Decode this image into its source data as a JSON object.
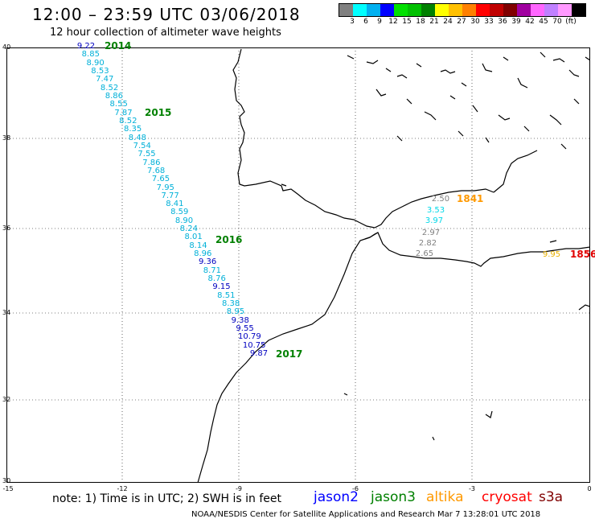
{
  "header": {
    "title": "12:00 – 23:59 UTC 03/06/2018",
    "subtitle": "12 hour collection of altimeter wave heights"
  },
  "colorbar": {
    "colors": [
      "#808080",
      "#00ffff",
      "#00b0f0",
      "#0000ff",
      "#00e000",
      "#00c000",
      "#008000",
      "#ffff00",
      "#ffc000",
      "#ff8000",
      "#ff0000",
      "#c00000",
      "#800000",
      "#a000a0",
      "#ff66ff",
      "#c080ff",
      "#ff99ff",
      "#000000"
    ],
    "labels": [
      "3",
      "6",
      "9",
      "12",
      "15",
      "18",
      "21",
      "24",
      "27",
      "30",
      "33",
      "36",
      "39",
      "42",
      "45",
      "70",
      "(ft)"
    ]
  },
  "axes": {
    "y_ticks": [
      "40",
      "38",
      "36",
      "34",
      "32",
      "30"
    ],
    "x_ticks": [
      "-15",
      "-12",
      "-9",
      "-6",
      "-3",
      "0"
    ]
  },
  "track_main": {
    "color_teal": "#00b0d8",
    "color_blue": "#0000c0",
    "values": [
      {
        "v": "9.22",
        "c": "blue"
      },
      {
        "v": "8.85",
        "c": "teal"
      },
      {
        "v": "8.90",
        "c": "teal"
      },
      {
        "v": "8.53",
        "c": "teal"
      },
      {
        "v": "7.47",
        "c": "teal"
      },
      {
        "v": "8.52",
        "c": "teal"
      },
      {
        "v": "8.86",
        "c": "teal"
      },
      {
        "v": "8.55",
        "c": "teal"
      },
      {
        "v": "7.87",
        "c": "teal"
      },
      {
        "v": "8.52",
        "c": "teal"
      },
      {
        "v": "8.35",
        "c": "teal"
      },
      {
        "v": "8.48",
        "c": "teal"
      },
      {
        "v": "7.54",
        "c": "teal"
      },
      {
        "v": "7.55",
        "c": "teal"
      },
      {
        "v": "7.86",
        "c": "teal"
      },
      {
        "v": "7.68",
        "c": "teal"
      },
      {
        "v": "7.65",
        "c": "teal"
      },
      {
        "v": "7.95",
        "c": "teal"
      },
      {
        "v": "7.77",
        "c": "teal"
      },
      {
        "v": "8.41",
        "c": "teal"
      },
      {
        "v": "8.59",
        "c": "teal"
      },
      {
        "v": "8.90",
        "c": "teal"
      },
      {
        "v": "8.24",
        "c": "teal"
      },
      {
        "v": "8.01",
        "c": "teal"
      },
      {
        "v": "8.14",
        "c": "teal"
      },
      {
        "v": "8.96",
        "c": "teal"
      },
      {
        "v": "9.36",
        "c": "blue"
      },
      {
        "v": "8.71",
        "c": "teal"
      },
      {
        "v": "8.76",
        "c": "teal"
      },
      {
        "v": "9.15",
        "c": "blue"
      },
      {
        "v": "8.51",
        "c": "teal"
      },
      {
        "v": "8.38",
        "c": "teal"
      },
      {
        "v": "8.95",
        "c": "teal"
      },
      {
        "v": "9.38",
        "c": "blue"
      },
      {
        "v": "9.55",
        "c": "blue"
      },
      {
        "v": "10.79",
        "c": "blue"
      },
      {
        "v": "10.75",
        "c": "blue"
      },
      {
        "v": "9.87",
        "c": "blue"
      }
    ],
    "time_labels": [
      "2014",
      "2015",
      "2016",
      "2017"
    ]
  },
  "track_med": {
    "values": [
      {
        "v": "2.50",
        "c": "#808080"
      },
      {
        "v": "3.53",
        "c": "#00d8e8"
      },
      {
        "v": "3.97",
        "c": "#00d8e8"
      },
      {
        "v": "2.97",
        "c": "#808080"
      },
      {
        "v": "2.82",
        "c": "#808080"
      },
      {
        "v": "2.65",
        "c": "#808080"
      }
    ],
    "time_label": "1841",
    "time_color": "#ff9900"
  },
  "track_east": {
    "value": "9.95",
    "value_color": "#e8b000",
    "time_label": "1856",
    "time_color": "#e00000"
  },
  "footer": {
    "note": "note: 1) Time is in UTC; 2) SWH is in feet",
    "legend": [
      {
        "name": "jason2",
        "color": "#0000ff"
      },
      {
        "name": "jason3",
        "color": "#008000"
      },
      {
        "name": "altika",
        "color": "#ff9900"
      },
      {
        "name": "cryosat",
        "color": "#ff0000"
      },
      {
        "name": "s3a",
        "color": "#800000"
      }
    ],
    "credit": "NOAA/NESDIS Center for Satellite Applications and Research   Mar  7 13:28:01 UTC 2018"
  }
}
